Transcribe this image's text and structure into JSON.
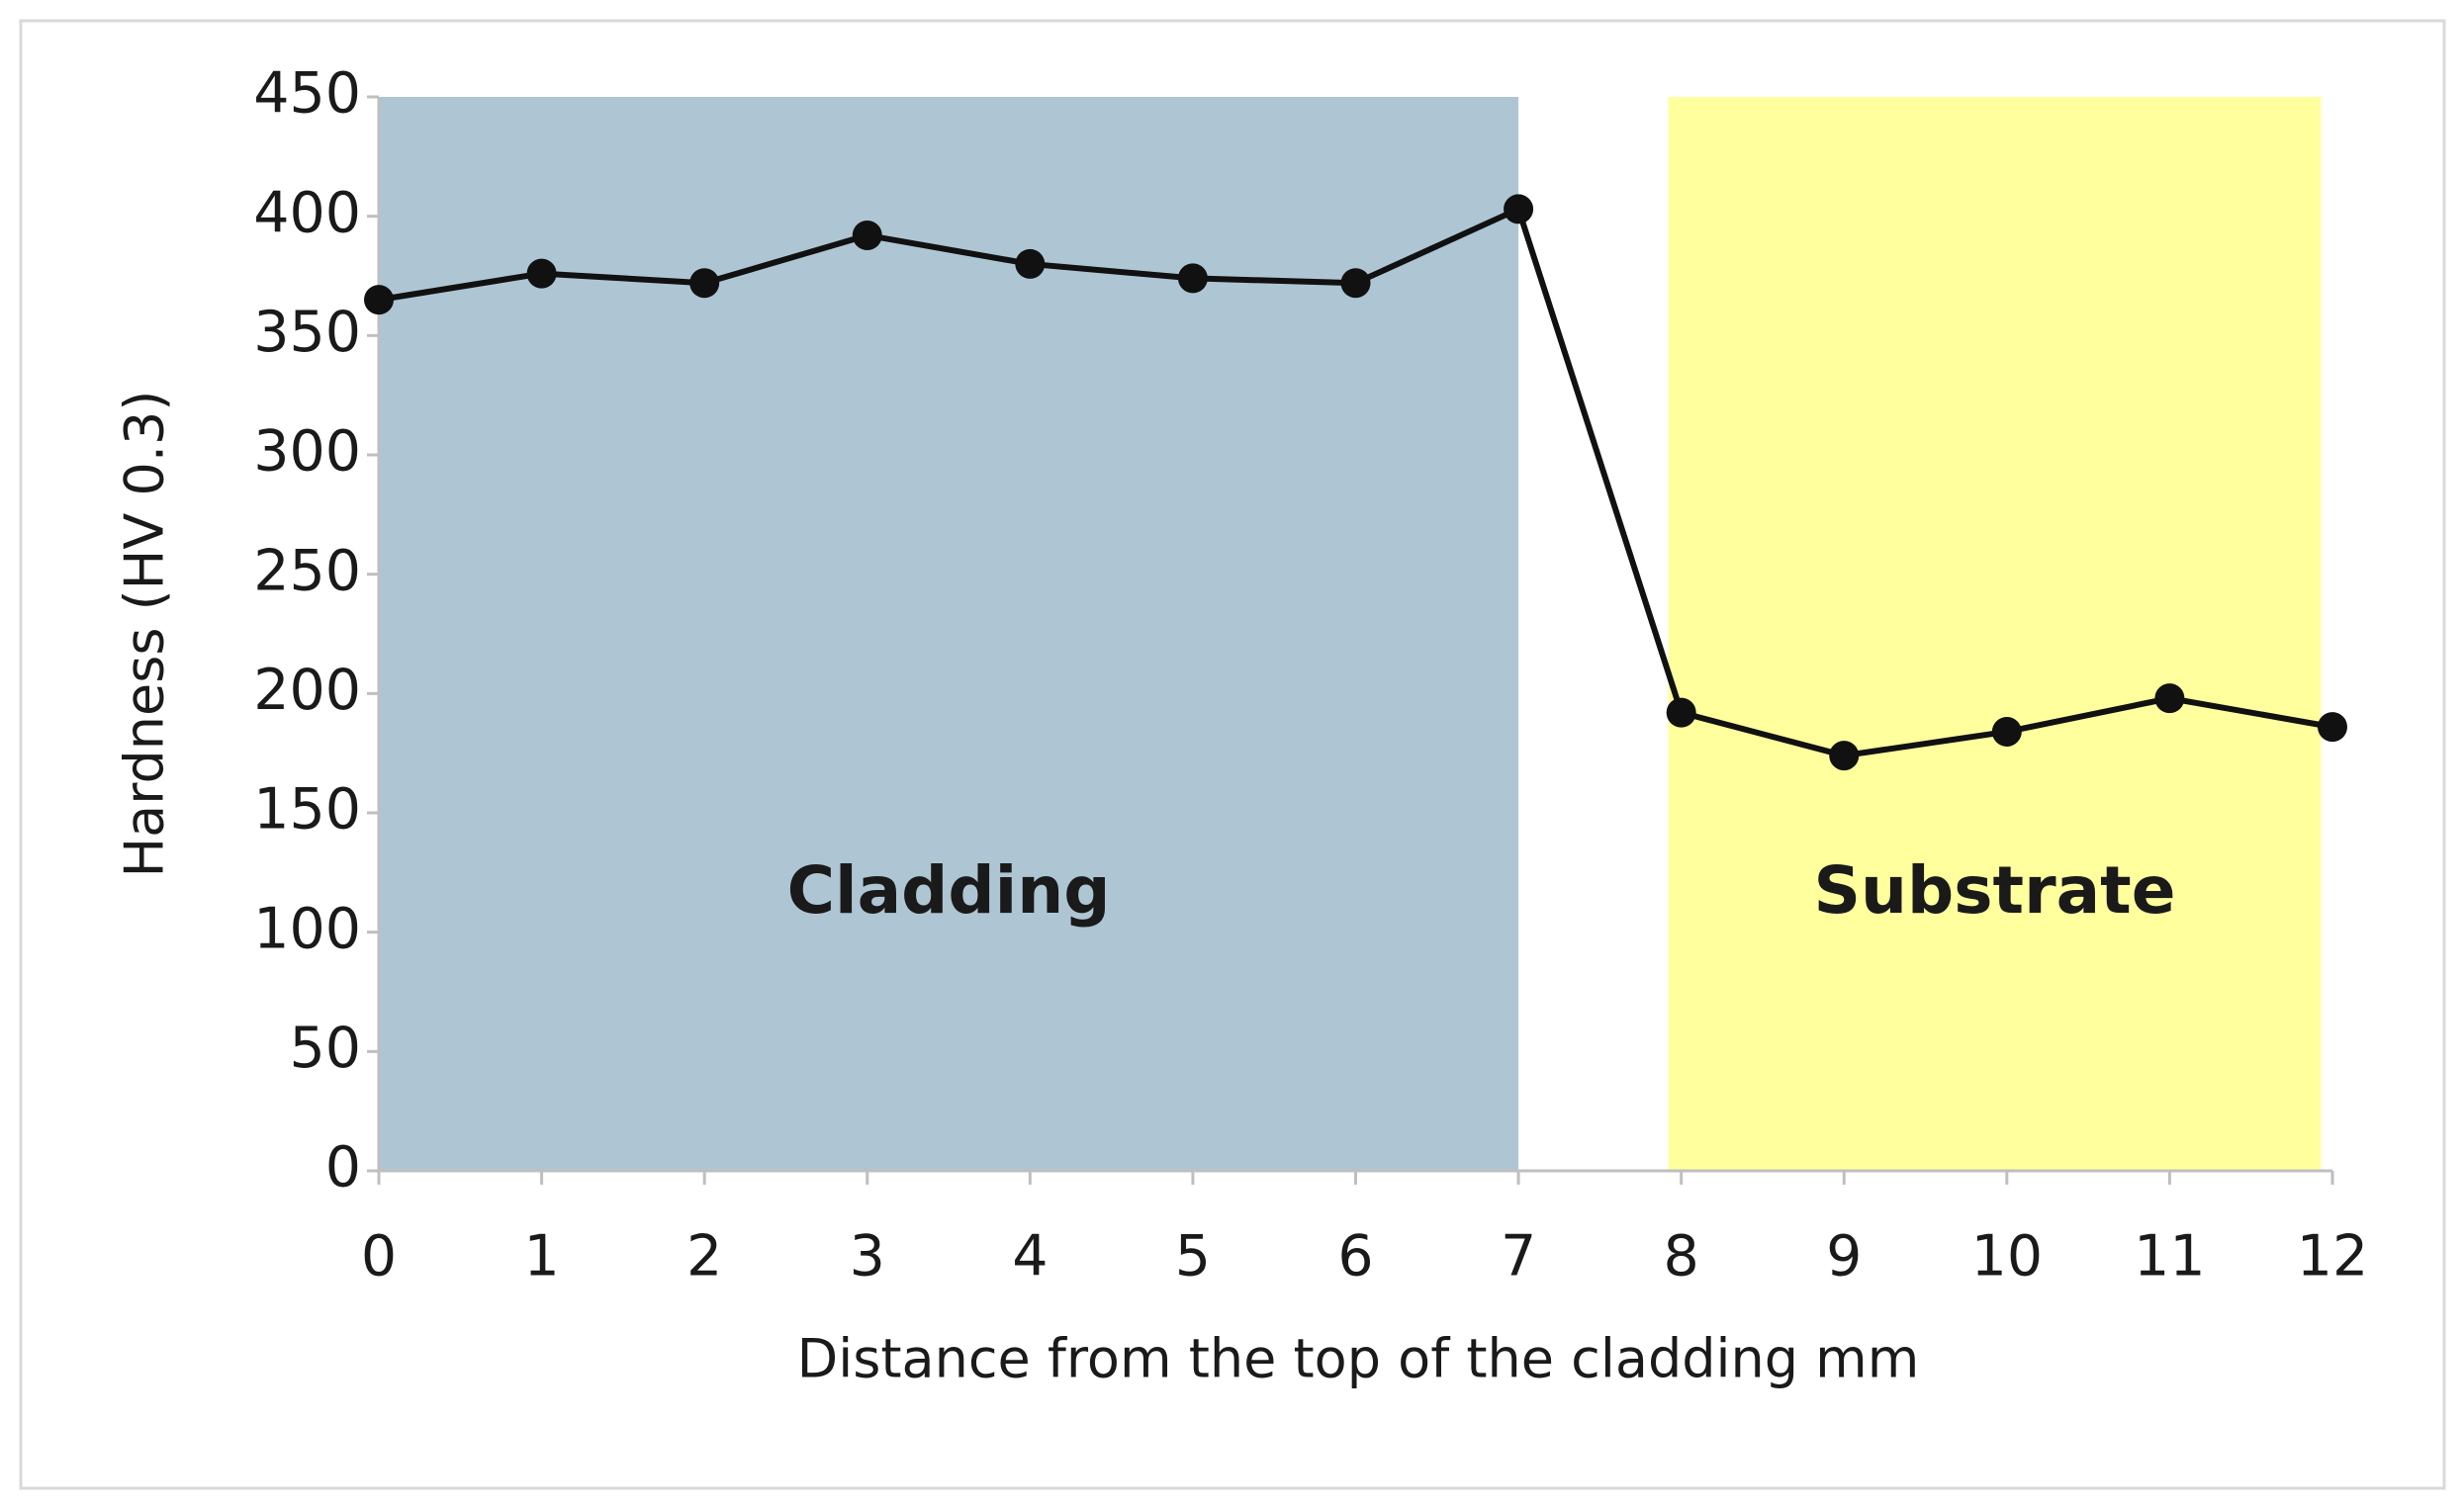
{
  "chart_data": {
    "type": "line",
    "x_label": "Distance from the top of the cladding mm",
    "y_label": "Hardness (HV 0.3)",
    "x": [
      0,
      1,
      2,
      3,
      4,
      5,
      6,
      7,
      8,
      9,
      10,
      11,
      12
    ],
    "series": [
      {
        "name": "Hardness",
        "color": "#111111",
        "values": [
          365,
          376,
          372,
          392,
          380,
          374,
          372,
          403,
          192,
          174,
          184,
          198,
          186
        ]
      }
    ],
    "regions": [
      {
        "label": "Cladding",
        "x0": 0,
        "x1": 7,
        "color": "#aec6d3"
      },
      {
        "label": "Substrate",
        "x0": 7.92,
        "x1": 11.93,
        "color": "#ffff9e"
      }
    ],
    "xlim": [
      0,
      12
    ],
    "xticks": [
      0,
      1,
      2,
      3,
      4,
      5,
      6,
      7,
      8,
      9,
      10,
      11,
      12
    ],
    "ylim": [
      0,
      450
    ],
    "yticks": [
      0,
      50,
      100,
      150,
      200,
      250,
      300,
      350,
      400,
      450
    ]
  }
}
